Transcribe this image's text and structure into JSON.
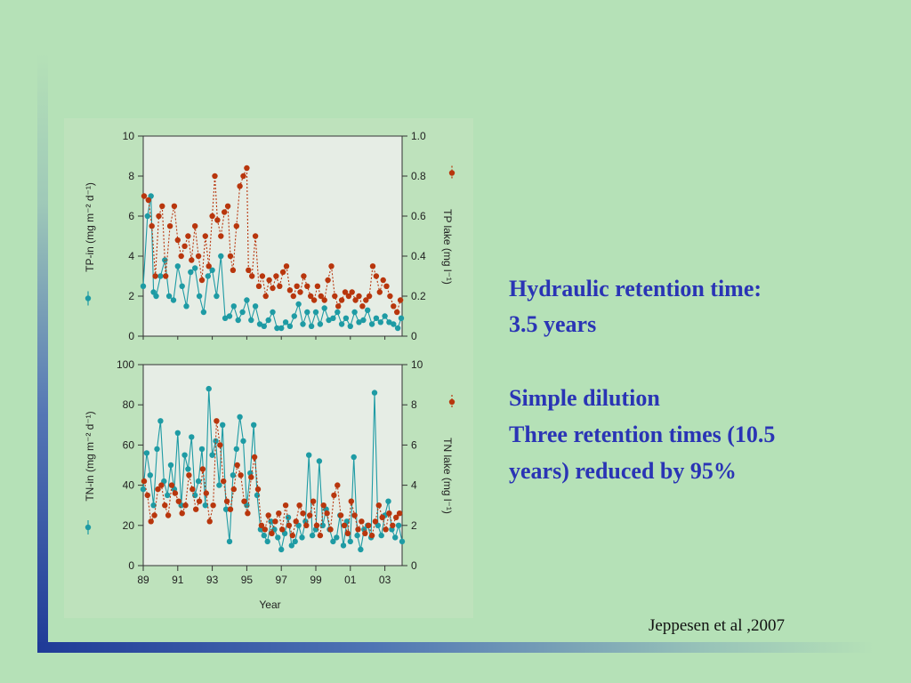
{
  "slide": {
    "text_lines": [
      "Hydraulic retention time:",
      "3.5 years",
      "Simple dilution",
      "Three retention times (10.5",
      "years) reduced by 95%"
    ],
    "citation": "Jeppesen et al ,2007"
  },
  "colors": {
    "background": "#b5e1b7",
    "text_accent": "#2a34b5",
    "series_inflow": "#1e9ba4",
    "series_lake": "#b8360d",
    "plot_bg": "#e6ede5"
  },
  "chart_data": [
    {
      "type": "line",
      "xlabel": "",
      "ylabel": "TP-in (mg m⁻² d⁻¹)",
      "y2label": "TP lake (mg l⁻¹)",
      "ylim": [
        0,
        10
      ],
      "y2lim": [
        0,
        1.0
      ],
      "yticks": [
        "0",
        "2",
        "4",
        "6",
        "8",
        "10"
      ],
      "y2ticks": [
        "0",
        "0.2",
        "0.4",
        "0.6",
        "0.8",
        "1.0"
      ],
      "xlim": [
        1989,
        2004
      ],
      "legend_placement": "axes-side",
      "series": [
        {
          "axis": "left",
          "x": [
            1989.0,
            1989.25,
            1989.45,
            1989.6,
            1989.75,
            1990.0,
            1990.25,
            1990.5,
            1990.75,
            1991.0,
            1991.25,
            1991.5,
            1991.75,
            1992.0,
            1992.25,
            1992.5,
            1992.75,
            1993.0,
            1993.25,
            1993.5,
            1993.75,
            1994.0,
            1994.25,
            1994.5,
            1994.75,
            1995.0,
            1995.25,
            1995.5,
            1995.75,
            1996.0,
            1996.25,
            1996.5,
            1996.75,
            1997.0,
            1997.25,
            1997.5,
            1997.75,
            1998.0,
            1998.25,
            1998.5,
            1998.75,
            1999.0,
            1999.25,
            1999.5,
            1999.75,
            2000.0,
            2000.25,
            2000.5,
            2000.75,
            2001.0,
            2001.25,
            2001.5,
            2001.75,
            2002.0,
            2002.25,
            2002.5,
            2002.75,
            2003.0,
            2003.25,
            2003.5,
            2003.75,
            2003.95
          ],
          "values": [
            2.5,
            6.0,
            7.0,
            2.2,
            2.0,
            3.0,
            3.8,
            2.0,
            1.8,
            3.5,
            2.5,
            1.5,
            3.2,
            3.4,
            2.0,
            1.2,
            3.0,
            3.3,
            2.0,
            4.0,
            0.9,
            1.0,
            1.5,
            0.8,
            1.2,
            1.8,
            0.8,
            1.5,
            0.6,
            0.5,
            0.8,
            1.2,
            0.4,
            0.4,
            0.7,
            0.5,
            1.0,
            1.6,
            0.6,
            1.2,
            0.5,
            1.2,
            0.6,
            1.4,
            0.8,
            0.9,
            1.2,
            0.6,
            0.9,
            0.5,
            1.2,
            0.7,
            0.8,
            1.3,
            0.6,
            0.9,
            0.7,
            1.0,
            0.7,
            0.6,
            0.4,
            0.9
          ]
        },
        {
          "axis": "right",
          "x": [
            1989.05,
            1989.3,
            1989.5,
            1989.7,
            1989.9,
            1990.1,
            1990.3,
            1990.55,
            1990.8,
            1991.0,
            1991.2,
            1991.4,
            1991.6,
            1991.8,
            1992.0,
            1992.2,
            1992.4,
            1992.6,
            1992.8,
            1993.0,
            1993.15,
            1993.3,
            1993.5,
            1993.7,
            1993.9,
            1994.05,
            1994.2,
            1994.4,
            1994.6,
            1994.8,
            1995.0,
            1995.1,
            1995.3,
            1995.5,
            1995.7,
            1995.9,
            1996.1,
            1996.3,
            1996.5,
            1996.7,
            1996.9,
            1997.1,
            1997.3,
            1997.5,
            1997.7,
            1997.9,
            1998.1,
            1998.3,
            1998.5,
            1998.7,
            1998.9,
            1999.1,
            1999.3,
            1999.5,
            1999.7,
            1999.9,
            2000.1,
            2000.3,
            2000.5,
            2000.7,
            2000.9,
            2001.1,
            2001.3,
            2001.5,
            2001.7,
            2001.9,
            2002.1,
            2002.3,
            2002.5,
            2002.7,
            2002.9,
            2003.1,
            2003.3,
            2003.5,
            2003.7,
            2003.9
          ],
          "values": [
            0.7,
            0.68,
            0.55,
            0.3,
            0.6,
            0.65,
            0.3,
            0.55,
            0.65,
            0.48,
            0.4,
            0.45,
            0.5,
            0.38,
            0.55,
            0.4,
            0.28,
            0.5,
            0.35,
            0.6,
            0.8,
            0.58,
            0.5,
            0.62,
            0.65,
            0.4,
            0.33,
            0.55,
            0.75,
            0.8,
            0.84,
            0.33,
            0.3,
            0.5,
            0.25,
            0.3,
            0.2,
            0.28,
            0.24,
            0.3,
            0.25,
            0.32,
            0.35,
            0.23,
            0.2,
            0.25,
            0.22,
            0.3,
            0.25,
            0.2,
            0.18,
            0.25,
            0.2,
            0.18,
            0.28,
            0.35,
            0.2,
            0.15,
            0.18,
            0.22,
            0.2,
            0.22,
            0.18,
            0.2,
            0.15,
            0.18,
            0.2,
            0.35,
            0.3,
            0.22,
            0.28,
            0.25,
            0.2,
            0.15,
            0.12,
            0.18
          ]
        }
      ]
    },
    {
      "type": "line",
      "xlabel": "Year",
      "ylabel": "TN-in (mg m⁻² d⁻¹)",
      "y2label": "TN lake (mg l⁻¹)",
      "ylim": [
        0,
        100
      ],
      "y2lim": [
        0,
        10
      ],
      "yticks": [
        "0",
        "20",
        "40",
        "60",
        "80",
        "100"
      ],
      "y2ticks": [
        "0",
        "2",
        "4",
        "6",
        "8",
        "10"
      ],
      "xlim": [
        1989,
        2004
      ],
      "xticks": [
        "89",
        "91",
        "93",
        "95",
        "97",
        "99",
        "01",
        "03"
      ],
      "legend_placement": "axes-side",
      "series": [
        {
          "axis": "left",
          "x": [
            1989.0,
            1989.2,
            1989.4,
            1989.6,
            1989.8,
            1990.0,
            1990.2,
            1990.4,
            1990.6,
            1990.8,
            1991.0,
            1991.2,
            1991.4,
            1991.6,
            1991.8,
            1992.0,
            1992.2,
            1992.4,
            1992.6,
            1992.8,
            1993.0,
            1993.2,
            1993.4,
            1993.6,
            1993.8,
            1994.0,
            1994.2,
            1994.4,
            1994.6,
            1994.8,
            1995.0,
            1995.2,
            1995.4,
            1995.6,
            1995.8,
            1996.0,
            1996.2,
            1996.4,
            1996.6,
            1996.8,
            1997.0,
            1997.2,
            1997.4,
            1997.6,
            1997.8,
            1998.0,
            1998.2,
            1998.4,
            1998.6,
            1998.8,
            1999.0,
            1999.2,
            1999.4,
            1999.6,
            1999.8,
            2000.0,
            2000.2,
            2000.4,
            2000.6,
            2000.8,
            2001.0,
            2001.2,
            2001.4,
            2001.6,
            2001.8,
            2002.0,
            2002.2,
            2002.4,
            2002.6,
            2002.8,
            2003.0,
            2003.2,
            2003.4,
            2003.6,
            2003.8,
            2004.0
          ],
          "values": [
            38,
            56,
            45,
            30,
            58,
            72,
            42,
            35,
            50,
            38,
            66,
            30,
            55,
            48,
            64,
            35,
            42,
            58,
            30,
            88,
            55,
            62,
            40,
            70,
            28,
            12,
            45,
            58,
            74,
            62,
            30,
            46,
            70,
            35,
            18,
            15,
            12,
            22,
            18,
            14,
            8,
            16,
            24,
            10,
            12,
            20,
            14,
            22,
            55,
            15,
            18,
            52,
            20,
            28,
            18,
            12,
            14,
            25,
            10,
            22,
            12,
            54,
            15,
            8,
            18,
            20,
            14,
            86,
            20,
            15,
            25,
            32,
            18,
            14,
            20,
            12
          ]
        },
        {
          "axis": "right",
          "x": [
            1989.05,
            1989.25,
            1989.45,
            1989.65,
            1989.85,
            1990.05,
            1990.25,
            1990.45,
            1990.65,
            1990.85,
            1991.05,
            1991.25,
            1991.45,
            1991.65,
            1991.85,
            1992.05,
            1992.25,
            1992.45,
            1992.65,
            1992.85,
            1993.05,
            1993.25,
            1993.45,
            1993.65,
            1993.85,
            1994.05,
            1994.25,
            1994.45,
            1994.65,
            1994.85,
            1995.05,
            1995.25,
            1995.45,
            1995.65,
            1995.85,
            1996.05,
            1996.25,
            1996.45,
            1996.65,
            1996.85,
            1997.05,
            1997.25,
            1997.45,
            1997.65,
            1997.85,
            1998.05,
            1998.25,
            1998.45,
            1998.65,
            1998.85,
            1999.05,
            1999.25,
            1999.45,
            1999.65,
            1999.85,
            2000.05,
            2000.25,
            2000.45,
            2000.65,
            2000.85,
            2001.05,
            2001.25,
            2001.45,
            2001.65,
            2001.85,
            2002.05,
            2002.25,
            2002.45,
            2002.65,
            2002.85,
            2003.05,
            2003.25,
            2003.45,
            2003.65,
            2003.85
          ],
          "values": [
            4.2,
            3.5,
            2.2,
            2.5,
            3.8,
            4.0,
            3.0,
            2.5,
            4.0,
            3.6,
            3.2,
            2.6,
            3.0,
            4.5,
            3.8,
            2.8,
            3.2,
            4.8,
            3.6,
            2.2,
            3.0,
            7.2,
            6.0,
            4.2,
            3.2,
            2.8,
            3.8,
            5.0,
            4.5,
            3.2,
            2.6,
            4.4,
            5.4,
            3.8,
            2.0,
            1.8,
            2.5,
            1.6,
            2.2,
            2.6,
            1.8,
            3.0,
            2.0,
            1.5,
            2.2,
            3.0,
            2.6,
            2.0,
            2.5,
            3.2,
            2.0,
            1.5,
            3.0,
            2.6,
            1.8,
            3.5,
            4.0,
            2.5,
            2.0,
            1.6,
            3.2,
            2.5,
            1.8,
            2.2,
            1.6,
            2.0,
            1.5,
            2.2,
            3.0,
            2.4,
            1.8,
            2.6,
            2.0,
            2.4,
            2.6
          ]
        }
      ]
    }
  ]
}
